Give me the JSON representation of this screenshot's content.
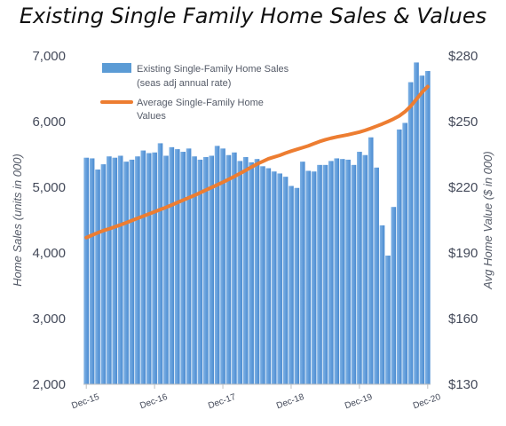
{
  "chart_data": {
    "type": "bar+line",
    "title": "Existing Single Family Home Sales & Values",
    "x": [
      "Dec-15",
      "Jan-16",
      "Feb-16",
      "Mar-16",
      "Apr-16",
      "May-16",
      "Jun-16",
      "Jul-16",
      "Aug-16",
      "Sep-16",
      "Oct-16",
      "Nov-16",
      "Dec-16",
      "Jan-17",
      "Feb-17",
      "Mar-17",
      "Apr-17",
      "May-17",
      "Jun-17",
      "Jul-17",
      "Aug-17",
      "Sep-17",
      "Oct-17",
      "Nov-17",
      "Dec-17",
      "Jan-18",
      "Feb-18",
      "Mar-18",
      "Apr-18",
      "May-18",
      "Jun-18",
      "Jul-18",
      "Aug-18",
      "Sep-18",
      "Oct-18",
      "Nov-18",
      "Dec-18",
      "Jan-19",
      "Feb-19",
      "Mar-19",
      "Apr-19",
      "May-19",
      "Jun-19",
      "Jul-19",
      "Aug-19",
      "Sep-19",
      "Oct-19",
      "Nov-19",
      "Dec-19",
      "Jan-20",
      "Feb-20",
      "Mar-20",
      "Apr-20",
      "May-20",
      "Jun-20",
      "Jul-20",
      "Aug-20",
      "Sep-20",
      "Oct-20",
      "Nov-20",
      "Dec-20"
    ],
    "x_tick_labels": [
      "Dec-15",
      "Dec-16",
      "Dec-17",
      "Dec-18",
      "Dec-19",
      "Dec-20"
    ],
    "series": [
      {
        "name": "Existing Single-Family Home Sales (seas adj annual rate)",
        "legend_lines": [
          "Existing Single-Family Home Sales",
          "(seas adj annual rate)"
        ],
        "type": "bar",
        "axis": "left",
        "color": "#5b9bd5",
        "values": [
          5450,
          5440,
          5270,
          5350,
          5470,
          5450,
          5480,
          5390,
          5420,
          5470,
          5560,
          5520,
          5530,
          5670,
          5480,
          5610,
          5580,
          5540,
          5590,
          5470,
          5420,
          5460,
          5480,
          5630,
          5590,
          5490,
          5530,
          5400,
          5460,
          5380,
          5430,
          5320,
          5290,
          5240,
          5210,
          5160,
          5020,
          4990,
          5390,
          5250,
          5240,
          5340,
          5340,
          5400,
          5440,
          5430,
          5420,
          5340,
          5540,
          5490,
          5760,
          5300,
          4420,
          3960,
          4700,
          5880,
          5980,
          6600,
          6900,
          6700,
          6770
        ]
      },
      {
        "name": "Average Single-Family Home Values",
        "legend_lines": [
          "Average Single-Family Home",
          "Values"
        ],
        "type": "line",
        "axis": "right",
        "color": "#ed7d31",
        "values": [
          197.0,
          198.1,
          199.2,
          200.2,
          201.0,
          201.9,
          202.8,
          203.8,
          204.8,
          205.8,
          206.8,
          207.8,
          208.8,
          209.8,
          210.8,
          211.9,
          213.0,
          214.1,
          215.2,
          216.3,
          217.5,
          218.7,
          219.9,
          221.1,
          222.3,
          223.6,
          224.9,
          226.3,
          227.7,
          229.2,
          230.6,
          231.8,
          233.0,
          233.8,
          234.6,
          235.6,
          236.5,
          237.3,
          238.1,
          238.9,
          239.9,
          240.9,
          241.7,
          242.4,
          243.0,
          243.5,
          244.0,
          244.6,
          245.2,
          246.0,
          246.9,
          247.9,
          248.9,
          250.0,
          251.2,
          252.6,
          254.5,
          257.0,
          260.2,
          263.4,
          266.0
        ]
      }
    ],
    "y_left": {
      "label": "Home Sales (units in 000)",
      "ticks": [
        "2,000",
        "3,000",
        "4,000",
        "5,000",
        "6,000",
        "7,000"
      ],
      "range": [
        2000,
        7000
      ]
    },
    "y_right": {
      "label": "Avg Home Value ($ in 000)",
      "ticks": [
        "$130",
        "$160",
        "$190",
        "$220",
        "$250",
        "$280"
      ],
      "range": [
        130,
        280
      ]
    },
    "grid": false,
    "legend": "top-left"
  }
}
